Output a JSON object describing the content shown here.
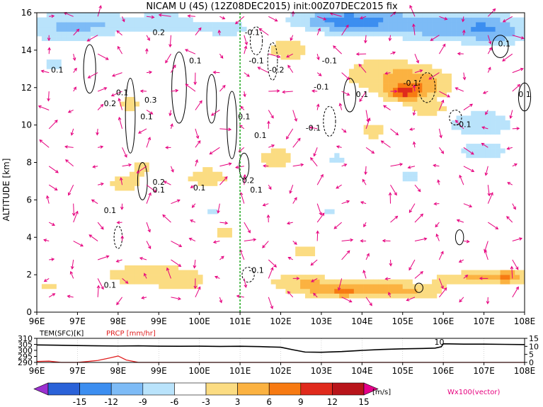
{
  "title": "NICAM U (4S) (12Z08DEC2015) init:00Z07DEC2015 fix",
  "colors": {
    "wind_vector": "#e6007e",
    "negative_contour": "#000000",
    "positive_contour": "#000000",
    "marker_line": "#22aa22",
    "tem_line": "#000000",
    "prcp_line": "#e02020"
  },
  "chart_data": [
    {
      "type": "heatmap",
      "name_text": "",
      "xlabel": "",
      "ylabel": "ALTITUDE [km]",
      "xlim": [
        96,
        108
      ],
      "ylim": [
        0,
        16
      ],
      "x_ticks": [
        "96E",
        "97E",
        "98E",
        "99E",
        "100E",
        "101E",
        "102E",
        "103E",
        "104E",
        "105E",
        "106E",
        "107E",
        "108E"
      ],
      "y_ticks": [
        "0",
        "2",
        "4",
        "6",
        "8",
        "10",
        "12",
        "14",
        "16"
      ],
      "vertical_marker_lon": 101,
      "contour_labels": [
        {
          "text": "0.2",
          "lon": 99.0,
          "alt": 14.8
        },
        {
          "text": "0.1",
          "lon": 96.5,
          "alt": 12.8
        },
        {
          "text": "0.1",
          "lon": 98.1,
          "alt": 11.6
        },
        {
          "text": "0.2",
          "lon": 97.8,
          "alt": 11.0
        },
        {
          "text": "0.3",
          "lon": 98.8,
          "alt": 11.2
        },
        {
          "text": "0.1",
          "lon": 98.7,
          "alt": 10.3
        },
        {
          "text": "0.1",
          "lon": 99.9,
          "alt": 13.3
        },
        {
          "text": "0.2",
          "lon": 99.0,
          "alt": 6.8
        },
        {
          "text": "0.1",
          "lon": 99.0,
          "alt": 6.4
        },
        {
          "text": "0.1",
          "lon": 100.0,
          "alt": 6.5
        },
        {
          "text": "0.1",
          "lon": 97.8,
          "alt": 5.3
        },
        {
          "text": "0.1",
          "lon": 97.8,
          "alt": 1.3
        },
        {
          "text": "0.1",
          "lon": 101.1,
          "alt": 10.3
        },
        {
          "text": "0.1",
          "lon": 101.5,
          "alt": 9.3
        },
        {
          "text": "0.2",
          "lon": 101.2,
          "alt": 6.9
        },
        {
          "text": "0.1",
          "lon": 101.4,
          "alt": 6.4
        },
        {
          "text": "-0.1",
          "lon": 101.3,
          "alt": 14.8
        },
        {
          "text": "-0.1",
          "lon": 101.4,
          "alt": 13.3
        },
        {
          "text": "-0.2",
          "lon": 101.9,
          "alt": 12.8
        },
        {
          "text": "-0.1",
          "lon": 103.2,
          "alt": 13.3
        },
        {
          "text": "-0.1",
          "lon": 103.0,
          "alt": 11.9
        },
        {
          "text": "0.1",
          "lon": 104.0,
          "alt": 11.5
        },
        {
          "text": "-0.1",
          "lon": 105.2,
          "alt": 12.1
        },
        {
          "text": "-0.1",
          "lon": 102.8,
          "alt": 9.7
        },
        {
          "text": "-0.1",
          "lon": 106.5,
          "alt": 9.9
        },
        {
          "text": "0.1",
          "lon": 107.5,
          "alt": 14.2
        },
        {
          "text": "0.1",
          "lon": 108.0,
          "alt": 11.5
        },
        {
          "text": "-0.1",
          "lon": 101.4,
          "alt": 2.1
        }
      ]
    },
    {
      "type": "line",
      "xlim": [
        96,
        108
      ],
      "left_axis_label": "TEM(SFC)[K]",
      "left_ticks": [
        "310",
        "305",
        "300",
        "295",
        "290"
      ],
      "right_axis_label": "PRCP [mm/hr]",
      "right_ticks": [
        "15",
        "10",
        "5",
        "0"
      ],
      "x_ticks": [
        "96E",
        "97E",
        "98E",
        "99E",
        "100E",
        "101E",
        "102E",
        "103E",
        "104E",
        "105E",
        "106E",
        "107E",
        "108E"
      ],
      "tem_annotation": "10",
      "series": [
        {
          "name": "TEM(SFC)[K]",
          "x": [
            96,
            96.5,
            97,
            97.5,
            98,
            98.5,
            99,
            99.5,
            100,
            100.5,
            101,
            101.5,
            102,
            102.3,
            102.6,
            103,
            103.5,
            104,
            104.5,
            105,
            105.5,
            105.8,
            105.95,
            106,
            106.5,
            107,
            107.5,
            108
          ],
          "values": [
            304.5,
            304.3,
            304.0,
            303.8,
            303.6,
            303.8,
            303.5,
            303.4,
            303.5,
            303.3,
            303.4,
            303.1,
            302.6,
            300.5,
            298.6,
            298.4,
            299.0,
            300.0,
            300.8,
            301.3,
            301.6,
            301.9,
            303.0,
            305.5,
            305.2,
            305.2,
            305.0,
            304.8
          ]
        },
        {
          "name": "PRCP [mm/hr]",
          "x": [
            96,
            96.3,
            96.6,
            97,
            97.5,
            97.8,
            98,
            98.2,
            98.5,
            99,
            100,
            101,
            102,
            103,
            104,
            105,
            106,
            107,
            108
          ],
          "values": [
            0.6,
            0.8,
            0.0,
            0.0,
            1.2,
            2.8,
            4.0,
            1.5,
            0.0,
            0.0,
            0.0,
            0.0,
            0.0,
            0.0,
            0.0,
            0.0,
            0.0,
            0.0,
            0.0
          ]
        }
      ]
    },
    {
      "type": "bar",
      "colorbar_ticks": [
        "-15",
        "-12",
        "-9",
        "-6",
        "-3",
        "3",
        "6",
        "9",
        "12",
        "15"
      ],
      "unit_label": "[m/s]",
      "vector_label": "Wx100(vector)",
      "levels": [
        -18,
        -15,
        -12,
        -9,
        -6,
        -3,
        3,
        6,
        9,
        12,
        15,
        18
      ],
      "bin_colors": [
        "#9b30d0",
        "#2a62d8",
        "#3c8ef0",
        "#7dbbf6",
        "#b9e3fb",
        "#ffffff",
        "#fbdc82",
        "#fbb241",
        "#f77a12",
        "#e02a1c",
        "#b8141a",
        "#e6008a"
      ]
    }
  ]
}
